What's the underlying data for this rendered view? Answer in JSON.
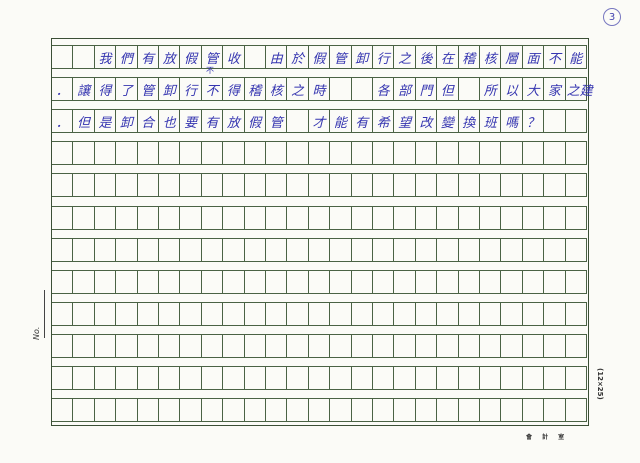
{
  "page_number": "3",
  "no_label": "No.",
  "grid_spec": "(12×25)",
  "footer_mark": "會 計 室",
  "grid": {
    "rows": 12,
    "cols": 25
  },
  "ink_color": "#3535b0",
  "line_color": "#4a6244",
  "handwriting_rows": [
    [
      "",
      "",
      "我",
      "們",
      "有",
      "放",
      "假",
      "管",
      "收",
      "",
      "由",
      "於",
      "假",
      "管",
      "卸",
      "行",
      "之",
      "後",
      "在",
      "稽",
      "核",
      "層",
      "面",
      "不",
      "能"
    ],
    [
      "．",
      "讓",
      "得",
      "了",
      "管",
      "卸",
      "行",
      "不",
      "得",
      "稽",
      "核",
      "之",
      "時",
      "",
      "",
      "各",
      "部",
      "門",
      "但",
      "",
      "所",
      "以",
      "大",
      "家",
      "之建"
    ],
    [
      "．",
      "但",
      "是",
      "卸",
      "合",
      "也",
      "要",
      "有",
      "放",
      "假",
      "管",
      "",
      "才",
      "能",
      "有",
      "希",
      "望",
      "改",
      "變",
      "換",
      "班",
      "嗎",
      "？",
      "",
      ""
    ]
  ],
  "insertion_mark": "不"
}
